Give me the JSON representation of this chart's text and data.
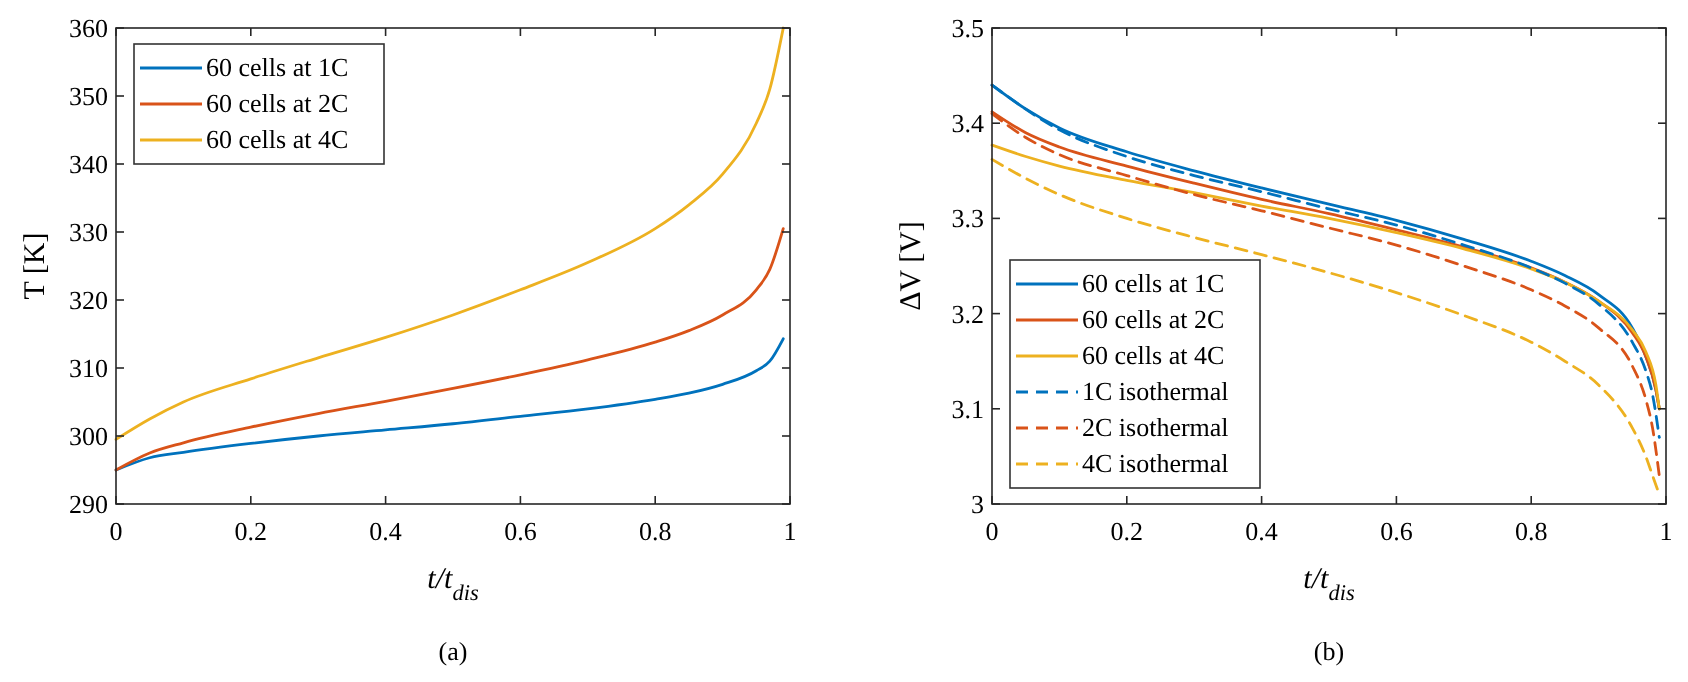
{
  "chart_data": [
    {
      "type": "line",
      "xlabel": "t/t$_{dis}$",
      "ylabel": "T [K]",
      "annotations": [
        "(a)"
      ],
      "xlim": [
        0,
        1
      ],
      "xticks": [
        0,
        0.2,
        0.4,
        0.6,
        0.8,
        1
      ],
      "ylim": [
        290,
        360
      ],
      "yticks": [
        290,
        300,
        310,
        320,
        330,
        340,
        350,
        360
      ],
      "legend": "top left",
      "grid": false,
      "x": [
        0,
        0.05,
        0.1,
        0.2,
        0.3,
        0.4,
        0.5,
        0.6,
        0.7,
        0.8,
        0.85,
        0.9,
        0.95,
        0.97,
        0.99
      ],
      "series": [
        {
          "name": "60 cells at 1C",
          "color": "#0072bd",
          "values": [
            295,
            296.8,
            297.6,
            298.9,
            300,
            300.9,
            301.8,
            302.9,
            304,
            305.4,
            306.3,
            307.6,
            309.6,
            311,
            314.3
          ]
        },
        {
          "name": "60 cells at 2C",
          "color": "#d95319",
          "values": [
            295,
            297.5,
            299,
            301.3,
            303.3,
            305.1,
            307,
            309,
            311.2,
            313.8,
            315.5,
            317.8,
            321.5,
            324.5,
            330.5
          ]
        },
        {
          "name": "60 cells at 4C",
          "color": "#edb120",
          "values": [
            299.5,
            302.5,
            305,
            308.4,
            311.5,
            314.5,
            317.8,
            321.5,
            325.5,
            330.5,
            334,
            338.5,
            346,
            351,
            360
          ]
        }
      ]
    },
    {
      "type": "line",
      "xlabel": "t/t$_{dis}$",
      "ylabel": "ΔV [V]",
      "annotations": [
        "(b)"
      ],
      "xlim": [
        0,
        1
      ],
      "xticks": [
        0,
        0.2,
        0.4,
        0.6,
        0.8,
        1
      ],
      "ylim": [
        3,
        3.5
      ],
      "yticks": [
        3,
        3.1,
        3.2,
        3.3,
        3.4,
        3.5
      ],
      "legend": "bottom left",
      "grid": false,
      "series": [
        {
          "name": "60 cells at 1C",
          "color": "#0072bd",
          "x": [
            0,
            0.05,
            0.1,
            0.2,
            0.3,
            0.4,
            0.5,
            0.6,
            0.7,
            0.8,
            0.85,
            0.9,
            0.95,
            0.97,
            0.985,
            0.99
          ],
          "values": [
            3.44,
            3.415,
            3.395,
            3.37,
            3.35,
            3.332,
            3.315,
            3.298,
            3.278,
            3.255,
            3.24,
            3.22,
            3.185,
            3.155,
            3.12,
            3.1
          ]
        },
        {
          "name": "60 cells at 2C",
          "color": "#d95319",
          "x": [
            0,
            0.05,
            0.1,
            0.2,
            0.3,
            0.4,
            0.5,
            0.6,
            0.7,
            0.8,
            0.85,
            0.9,
            0.95,
            0.97,
            0.985,
            0.99
          ],
          "values": [
            3.412,
            3.39,
            3.375,
            3.355,
            3.337,
            3.32,
            3.305,
            3.288,
            3.27,
            3.248,
            3.233,
            3.213,
            3.18,
            3.155,
            3.12,
            3.1
          ]
        },
        {
          "name": "60 cells at 4C",
          "color": "#edb120",
          "x": [
            0,
            0.05,
            0.1,
            0.2,
            0.3,
            0.4,
            0.5,
            0.6,
            0.7,
            0.8,
            0.85,
            0.9,
            0.95,
            0.97,
            0.985,
            0.99
          ],
          "values": [
            3.377,
            3.365,
            3.355,
            3.34,
            3.327,
            3.313,
            3.3,
            3.285,
            3.268,
            3.247,
            3.233,
            3.213,
            3.183,
            3.16,
            3.125,
            3.1
          ]
        },
        {
          "name": "1C isothermal",
          "color": "#0072bd",
          "line_style": "dashed",
          "x": [
            0,
            0.1,
            0.2,
            0.3,
            0.4,
            0.5,
            0.6,
            0.7,
            0.8,
            0.85,
            0.9,
            0.95,
            0.97,
            0.98,
            0.99
          ],
          "values": [
            3.44,
            3.393,
            3.365,
            3.345,
            3.328,
            3.31,
            3.293,
            3.272,
            3.248,
            3.232,
            3.21,
            3.17,
            3.14,
            3.115,
            3.07
          ]
        },
        {
          "name": "2C isothermal",
          "color": "#d95319",
          "line_style": "dashed",
          "x": [
            0,
            0.05,
            0.1,
            0.2,
            0.3,
            0.4,
            0.5,
            0.6,
            0.7,
            0.8,
            0.85,
            0.9,
            0.95,
            0.97,
            0.98,
            0.99
          ],
          "values": [
            3.41,
            3.385,
            3.367,
            3.345,
            3.325,
            3.308,
            3.29,
            3.272,
            3.25,
            3.225,
            3.208,
            3.185,
            3.145,
            3.11,
            3.08,
            3.03
          ]
        },
        {
          "name": "4C isothermal",
          "color": "#edb120",
          "line_style": "dashed",
          "x": [
            0,
            0.05,
            0.1,
            0.2,
            0.3,
            0.4,
            0.5,
            0.6,
            0.7,
            0.8,
            0.85,
            0.9,
            0.95,
            0.97,
            0.98,
            0.99
          ],
          "values": [
            3.362,
            3.342,
            3.325,
            3.3,
            3.28,
            3.262,
            3.243,
            3.222,
            3.198,
            3.17,
            3.15,
            3.125,
            3.08,
            3.05,
            3.03,
            3.01
          ]
        }
      ]
    }
  ]
}
